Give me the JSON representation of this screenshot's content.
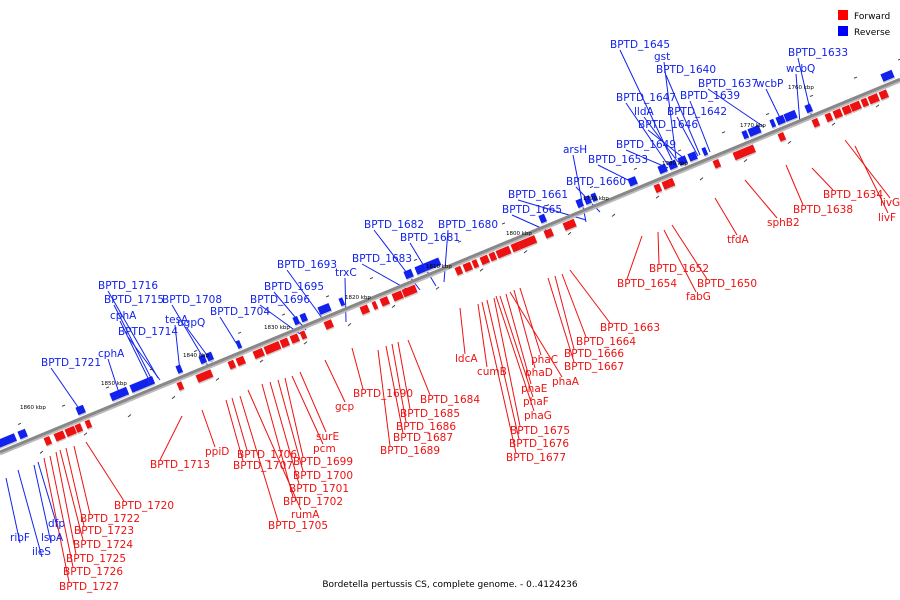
{
  "caption": "Bordetella pertussis CS, complete genome. - 0..4124236",
  "legend": [
    {
      "label": "Forward",
      "color": "#ff0000"
    },
    {
      "label": "Reverse",
      "color": "#0000ff"
    }
  ],
  "colors": {
    "forward": "#ee1111",
    "reverse": "#1122ee",
    "axis": "#888888"
  },
  "kbp_ticks": [
    "1860 kbp",
    "1850 kbp",
    "1840 kbp",
    "1830 kbp",
    "1820 kbp",
    "1810 kbp",
    "1800 kbp",
    "1790 kbp",
    "1780 kbp",
    "1770 kbp",
    "1760 kbp"
  ],
  "reverse_genes": [
    "BPTD_1645",
    "gst",
    "BPTD_1640",
    "BPTD_1637",
    "wcbP",
    "BPTD_1633",
    "wcbQ",
    "BPTD_1639",
    "BPTD_1647",
    "BPTD_1642",
    "lldA",
    "BPTD_1646",
    "BPTD_1649",
    "arsH",
    "BPTD_1653",
    "BPTD_1660",
    "BPTD_1661",
    "BPTD_1665",
    "BPTD_1682",
    "BPTD_1680",
    "BPTD_1681",
    "BPTD_1683",
    "BPTD_1693",
    "trxC",
    "BPTD_1695",
    "BPTD_1696",
    "BPTD_1716",
    "BPTD_1715",
    "BPTD_1708",
    "cphA",
    "tesA",
    "ugpQ",
    "BPTD_1704",
    "BPTD_1714",
    "cphA",
    "BPTD_1721",
    "ribF",
    "ileS",
    "lspA",
    "dfp"
  ],
  "forward_genes": [
    "BPTD_1634",
    "livG",
    "BPTD_1638",
    "livF",
    "sphB2",
    "tfdA",
    "BPTD_1650",
    "BPTD_1652",
    "fabG",
    "BPTD_1654",
    "BPTD_1663",
    "BPTD_1664",
    "BPTD_1666",
    "BPTD_1667",
    "phaC",
    "phaA",
    "phaD",
    "phaE",
    "phaF",
    "phaG",
    "BPTD_1675",
    "BPTD_1676",
    "BPTD_1677",
    "cumB",
    "ldcA",
    "BPTD_1684",
    "BPTD_1690",
    "BPTD_1685",
    "BPTD_1686",
    "BPTD_1687",
    "BPTD_1689",
    "gcp",
    "surE",
    "pcm",
    "BPTD_1699",
    "BPTD_1700",
    "BPTD_1701",
    "BPTD_1702",
    "rumA",
    "BPTD_1705",
    "BPTD_1706",
    "BPTD_1707",
    "ppiD",
    "BPTD_1713",
    "BPTD_1720",
    "BPTD_1722",
    "BPTD_1723",
    "BPTD_1724",
    "BPTD_1725",
    "BPTD_1726",
    "BPTD_1727"
  ]
}
